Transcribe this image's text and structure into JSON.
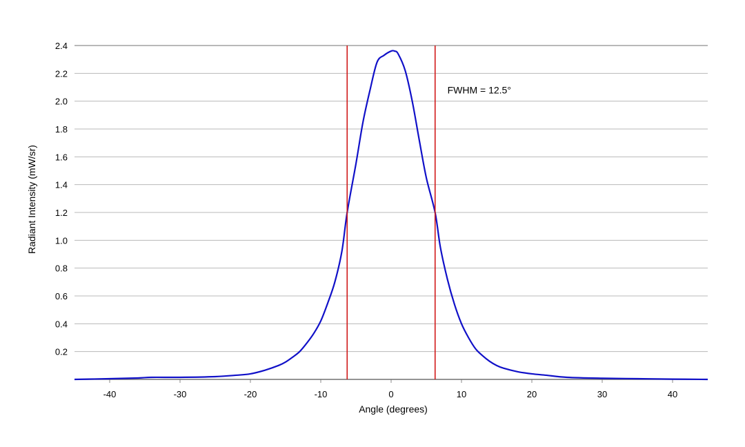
{
  "chart_data": {
    "type": "line",
    "title": "",
    "xlabel": "Angle (degrees)",
    "ylabel": "Radiant Intensity (mW/sr)",
    "xlim": [
      -45,
      45
    ],
    "ylim": [
      0,
      2.4
    ],
    "x_ticks": [
      -40,
      -30,
      -20,
      -10,
      0,
      10,
      20,
      30,
      40
    ],
    "y_ticks": [
      0.2,
      0.4,
      0.6,
      0.8,
      1.0,
      1.2,
      1.4,
      1.6,
      1.8,
      2.0,
      2.2,
      2.4
    ],
    "grid": true,
    "legend": "none",
    "series": [
      {
        "color": "#1010c8",
        "x": [
          -45,
          -40,
          -36,
          -34,
          -30,
          -25,
          -22,
          -20,
          -18,
          -16,
          -15,
          -14,
          -13,
          -12,
          -11,
          -10,
          -9,
          -8,
          -7,
          -6.25,
          -5,
          -4,
          -3,
          -2,
          -1,
          0,
          0.5,
          1,
          2,
          3,
          4,
          5,
          6.25,
          7,
          8,
          9,
          10,
          11,
          12,
          13,
          14,
          15,
          16,
          18,
          20,
          22,
          25,
          30,
          35,
          40,
          45
        ],
        "y": [
          0.0,
          0.005,
          0.01,
          0.015,
          0.015,
          0.02,
          0.03,
          0.04,
          0.065,
          0.1,
          0.125,
          0.16,
          0.2,
          0.26,
          0.33,
          0.42,
          0.55,
          0.7,
          0.92,
          1.2,
          1.55,
          1.85,
          2.08,
          2.28,
          2.33,
          2.36,
          2.36,
          2.34,
          2.22,
          2.0,
          1.72,
          1.45,
          1.2,
          0.95,
          0.72,
          0.54,
          0.4,
          0.3,
          0.22,
          0.17,
          0.13,
          0.1,
          0.08,
          0.055,
          0.04,
          0.03,
          0.015,
          0.008,
          0.005,
          0.002,
          0.0
        ]
      }
    ],
    "vlines": [
      {
        "x": -6.25,
        "color": "#d01818"
      },
      {
        "x": 6.25,
        "color": "#d01818"
      }
    ],
    "annotations": [
      {
        "text": "FWHM = 12.5°",
        "x": 8,
        "y": 2.08
      }
    ]
  }
}
